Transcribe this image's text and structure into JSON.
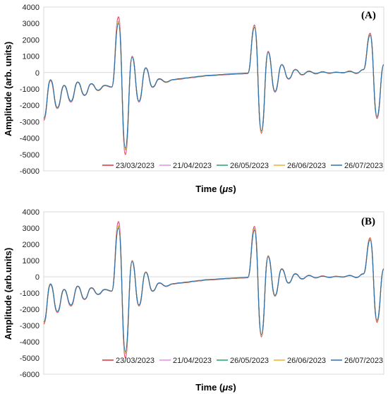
{
  "chart_data": [
    {
      "type": "line",
      "panel_label": "(A)",
      "xlabel_main": "Time (",
      "xlabel_unit": "μs",
      "xlabel_close": ")",
      "ylabel": "Amplitude (arb. units)",
      "ylim": [
        -6000,
        4000
      ],
      "yticks": [
        "4000",
        "3000",
        "2000",
        "1000",
        "0",
        "-1000",
        "-2000",
        "-3000",
        "-4000",
        "-5000",
        "-6000"
      ],
      "xlim": [
        0,
        100
      ],
      "grid": false,
      "legend_position": "bottom-right",
      "x": [
        0,
        2,
        4,
        6,
        8,
        10,
        12,
        14,
        16,
        18,
        20,
        22,
        24,
        26,
        28,
        30,
        32,
        34,
        36,
        38,
        40,
        42,
        44,
        46,
        48,
        50,
        52,
        54,
        56,
        58,
        60,
        62,
        64,
        66,
        68,
        70,
        72,
        74,
        76,
        78,
        80,
        82,
        84,
        86,
        88,
        90,
        92,
        94,
        96,
        98,
        100
      ],
      "series": [
        {
          "name": "23/03/2023",
          "color": "#e03131",
          "values": [
            -2900,
            -500,
            -2200,
            -800,
            -1800,
            -600,
            -1400,
            -700,
            -1100,
            -800,
            -900,
            3400,
            -5000,
            1000,
            -1800,
            300,
            -900,
            -400,
            -600,
            -450,
            -400,
            -350,
            -300,
            -250,
            -200,
            -180,
            -150,
            -120,
            -100,
            -80,
            -60,
            2900,
            -3700,
            1300,
            -1200,
            500,
            -400,
            200,
            -150,
            100,
            -80,
            60,
            -50,
            40,
            -30,
            100,
            -60,
            200,
            2400,
            -2800,
            500
          ]
        },
        {
          "name": "21/04/2023",
          "color": "#e58ee8",
          "values": [
            -2850,
            -480,
            -2180,
            -790,
            -1780,
            -590,
            -1390,
            -690,
            -1090,
            -790,
            -890,
            3300,
            -4900,
            980,
            -1780,
            290,
            -890,
            -390,
            -590,
            -440,
            -390,
            -340,
            -290,
            -240,
            -190,
            -170,
            -140,
            -110,
            -90,
            -70,
            -50,
            2850,
            -3650,
            1280,
            -1180,
            490,
            -390,
            190,
            -140,
            90,
            -70,
            50,
            -40,
            30,
            -20,
            90,
            -50,
            190,
            2350,
            -2750,
            490
          ]
        },
        {
          "name": "26/05/2023",
          "color": "#20a46b",
          "values": [
            -2800,
            -450,
            -2150,
            -780,
            -1750,
            -580,
            -1380,
            -680,
            -1080,
            -780,
            -880,
            3100,
            -4700,
            950,
            -1750,
            280,
            -880,
            -380,
            -580,
            -430,
            -380,
            -330,
            -280,
            -230,
            -180,
            -160,
            -130,
            -100,
            -80,
            -60,
            -40,
            2800,
            -3600,
            1250,
            -1150,
            480,
            -380,
            180,
            -130,
            80,
            -60,
            40,
            -30,
            20,
            -10,
            80,
            -40,
            180,
            2300,
            -2700,
            480
          ]
        },
        {
          "name": "26/06/2023",
          "color": "#f0b429",
          "values": [
            -2820,
            -460,
            -2160,
            -785,
            -1760,
            -585,
            -1385,
            -685,
            -1085,
            -785,
            -885,
            3150,
            -4750,
            960,
            -1760,
            285,
            -885,
            -385,
            -585,
            -435,
            -385,
            -335,
            -285,
            -235,
            -185,
            -165,
            -135,
            -105,
            -85,
            -65,
            -45,
            2820,
            -3620,
            1260,
            -1160,
            485,
            -385,
            185,
            -135,
            85,
            -65,
            45,
            -35,
            25,
            -15,
            85,
            -45,
            185,
            2320,
            -2720,
            485
          ]
        },
        {
          "name": "26/07/2023",
          "color": "#2f6fb0",
          "values": [
            -2780,
            -440,
            -2140,
            -775,
            -1740,
            -575,
            -1375,
            -675,
            -1075,
            -775,
            -875,
            3000,
            -4600,
            940,
            -1740,
            275,
            -875,
            -375,
            -575,
            -425,
            -375,
            -325,
            -275,
            -225,
            -175,
            -155,
            -125,
            -95,
            -75,
            -55,
            -35,
            2750,
            -3550,
            1240,
            -1140,
            475,
            -375,
            175,
            -125,
            75,
            -55,
            35,
            -25,
            15,
            -5,
            75,
            -35,
            175,
            2280,
            -2680,
            475
          ]
        }
      ]
    },
    {
      "type": "line",
      "panel_label": "(B)",
      "xlabel_main": "Time (",
      "xlabel_unit": "μs",
      "xlabel_close": ")",
      "ylabel": "Amplitude (arb.units)",
      "ylim": [
        -6000,
        4000
      ],
      "yticks": [
        "4000",
        "3000",
        "2000",
        "1000",
        "0",
        "-1000",
        "-2000",
        "-3000",
        "-4000",
        "-5000",
        "-6000"
      ],
      "xlim": [
        0,
        100
      ],
      "grid": false,
      "legend_position": "bottom-right",
      "x": [
        0,
        2,
        4,
        6,
        8,
        10,
        12,
        14,
        16,
        18,
        20,
        22,
        24,
        26,
        28,
        30,
        32,
        34,
        36,
        38,
        40,
        42,
        44,
        46,
        48,
        50,
        52,
        54,
        56,
        58,
        60,
        62,
        64,
        66,
        68,
        70,
        72,
        74,
        76,
        78,
        80,
        82,
        84,
        86,
        88,
        90,
        92,
        94,
        96,
        98,
        100
      ],
      "series": [
        {
          "name": "23/03/2023",
          "color": "#e03131",
          "values": [
            -2900,
            -500,
            -2200,
            -800,
            -1800,
            -600,
            -1400,
            -700,
            -1100,
            -800,
            -900,
            3400,
            -5000,
            1000,
            -1800,
            300,
            -900,
            -400,
            -600,
            -450,
            -400,
            -350,
            -300,
            -250,
            -200,
            -180,
            -150,
            -120,
            -100,
            -80,
            -60,
            3100,
            -3700,
            1300,
            -1200,
            500,
            -400,
            200,
            -150,
            100,
            -80,
            60,
            -50,
            40,
            -30,
            100,
            -60,
            200,
            2400,
            -2800,
            500
          ]
        },
        {
          "name": "21/04/2023",
          "color": "#e58ee8",
          "values": [
            -2850,
            -480,
            -2180,
            -790,
            -1780,
            -590,
            -1390,
            -690,
            -1090,
            -790,
            -890,
            3300,
            -4900,
            980,
            -1780,
            290,
            -890,
            -390,
            -590,
            -440,
            -390,
            -340,
            -290,
            -240,
            -190,
            -170,
            -140,
            -110,
            -90,
            -70,
            -50,
            3000,
            -3650,
            1280,
            -1180,
            490,
            -390,
            190,
            -140,
            90,
            -70,
            50,
            -40,
            30,
            -20,
            90,
            -50,
            190,
            2350,
            -2750,
            490
          ]
        },
        {
          "name": "26/05/2023",
          "color": "#20a46b",
          "values": [
            -2800,
            -450,
            -2150,
            -780,
            -1750,
            -580,
            -1380,
            -680,
            -1080,
            -780,
            -880,
            3100,
            -4700,
            950,
            -1750,
            280,
            -880,
            -380,
            -580,
            -430,
            -380,
            -330,
            -280,
            -230,
            -180,
            -160,
            -130,
            -100,
            -80,
            -60,
            -40,
            2900,
            -3600,
            1250,
            -1150,
            480,
            -380,
            180,
            -130,
            80,
            -60,
            40,
            -30,
            20,
            -10,
            80,
            -40,
            180,
            2300,
            -2700,
            480
          ]
        },
        {
          "name": "26/06/2023",
          "color": "#f0b429",
          "values": [
            -2820,
            -460,
            -2160,
            -785,
            -1760,
            -585,
            -1385,
            -685,
            -1085,
            -785,
            -885,
            3150,
            -4750,
            960,
            -1760,
            285,
            -885,
            -385,
            -585,
            -435,
            -385,
            -335,
            -285,
            -235,
            -185,
            -165,
            -135,
            -105,
            -85,
            -65,
            -45,
            2950,
            -3620,
            1260,
            -1160,
            485,
            -385,
            185,
            -135,
            85,
            -65,
            45,
            -35,
            25,
            -15,
            85,
            -45,
            185,
            2320,
            -2720,
            485
          ]
        },
        {
          "name": "26/07/2023",
          "color": "#2f6fb0",
          "values": [
            -2780,
            -440,
            -2140,
            -775,
            -1740,
            -575,
            -1375,
            -675,
            -1075,
            -775,
            -875,
            3000,
            -4600,
            940,
            -1740,
            275,
            -875,
            -375,
            -575,
            -425,
            -375,
            -325,
            -275,
            -225,
            -175,
            -155,
            -125,
            -95,
            -75,
            -55,
            -35,
            2850,
            -3550,
            1240,
            -1140,
            475,
            -375,
            175,
            -125,
            75,
            -55,
            35,
            -25,
            15,
            -5,
            75,
            -35,
            175,
            2280,
            -2680,
            475
          ]
        }
      ]
    }
  ]
}
